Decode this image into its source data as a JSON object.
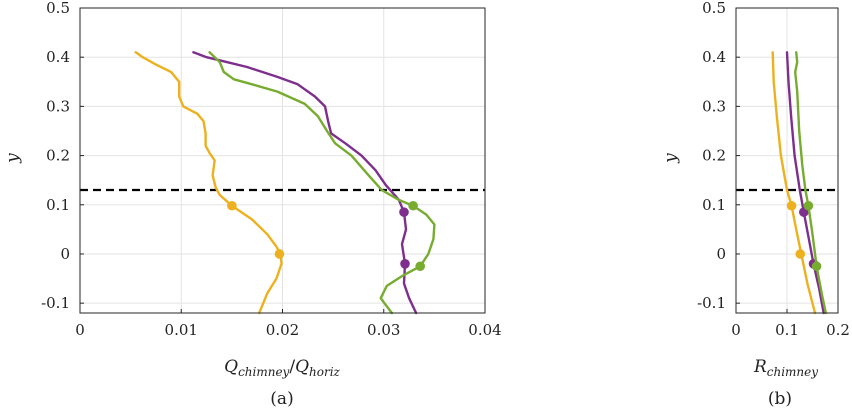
{
  "chart_data": [
    {
      "type": "line",
      "caption": "(a)",
      "xlabel_main": "Q",
      "xlabel_sub1": "chimney",
      "xlabel_sep": "/",
      "xlabel_main2": "Q",
      "xlabel_sub2": "horiz",
      "ylabel": "y",
      "xlim": [
        0,
        0.04
      ],
      "ylim": [
        -0.12,
        0.5
      ],
      "xticks": [
        0,
        0.01,
        0.02,
        0.03,
        0.04
      ],
      "xtick_labels": [
        "0",
        "0.01",
        "0.02",
        "0.03",
        "0.04"
      ],
      "yticks": [
        -0.1,
        0,
        0.1,
        0.2,
        0.3,
        0.4,
        0.5
      ],
      "ytick_labels": [
        "-0.1",
        "0",
        "0.1",
        "0.2",
        "0.3",
        "0.4",
        "0.5"
      ],
      "grid": true,
      "threshold_y": 0.13,
      "series": [
        {
          "color": "#EDB120",
          "points": [
            [
              0.0055,
              0.41
            ],
            [
              0.0062,
              0.4
            ],
            [
              0.0075,
              0.385
            ],
            [
              0.009,
              0.37
            ],
            [
              0.0098,
              0.35
            ],
            [
              0.0098,
              0.32
            ],
            [
              0.0102,
              0.3
            ],
            [
              0.0116,
              0.285
            ],
            [
              0.0122,
              0.27
            ],
            [
              0.0124,
              0.245
            ],
            [
              0.0124,
              0.22
            ],
            [
              0.0128,
              0.205
            ],
            [
              0.0133,
              0.19
            ],
            [
              0.0131,
              0.16
            ],
            [
              0.0134,
              0.135
            ],
            [
              0.0138,
              0.12
            ],
            [
              0.015,
              0.098
            ],
            [
              0.017,
              0.07
            ],
            [
              0.0185,
              0.04
            ],
            [
              0.0194,
              0.015
            ],
            [
              0.0198,
              0.0
            ],
            [
              0.0199,
              -0.02
            ],
            [
              0.0194,
              -0.05
            ],
            [
              0.0185,
              -0.08
            ],
            [
              0.0177,
              -0.12
            ]
          ],
          "markers": [
            [
              0.015,
              0.098
            ],
            [
              0.0197,
              0.0
            ]
          ]
        },
        {
          "color": "#7E2F8E",
          "points": [
            [
              0.0112,
              0.41
            ],
            [
              0.0125,
              0.4
            ],
            [
              0.0145,
              0.39
            ],
            [
              0.0165,
              0.38
            ],
            [
              0.0195,
              0.36
            ],
            [
              0.0215,
              0.345
            ],
            [
              0.0232,
              0.32
            ],
            [
              0.0242,
              0.3
            ],
            [
              0.0245,
              0.27
            ],
            [
              0.0248,
              0.245
            ],
            [
              0.0262,
              0.225
            ],
            [
              0.0278,
              0.2
            ],
            [
              0.0292,
              0.17
            ],
            [
              0.0302,
              0.14
            ],
            [
              0.0315,
              0.11
            ],
            [
              0.032,
              0.085
            ],
            [
              0.0322,
              0.05
            ],
            [
              0.0318,
              0.02
            ],
            [
              0.0321,
              -0.02
            ],
            [
              0.032,
              -0.06
            ],
            [
              0.0325,
              -0.09
            ],
            [
              0.0332,
              -0.12
            ]
          ],
          "markers": [
            [
              0.032,
              0.085
            ],
            [
              0.0321,
              -0.02
            ]
          ]
        },
        {
          "color": "#77AC30",
          "points": [
            [
              0.0128,
              0.41
            ],
            [
              0.0138,
              0.39
            ],
            [
              0.0142,
              0.37
            ],
            [
              0.0152,
              0.355
            ],
            [
              0.017,
              0.345
            ],
            [
              0.0195,
              0.33
            ],
            [
              0.0222,
              0.305
            ],
            [
              0.0235,
              0.28
            ],
            [
              0.0244,
              0.25
            ],
            [
              0.0252,
              0.225
            ],
            [
              0.0268,
              0.2
            ],
            [
              0.0285,
              0.16
            ],
            [
              0.0298,
              0.13
            ],
            [
              0.0315,
              0.11
            ],
            [
              0.0329,
              0.098
            ],
            [
              0.0342,
              0.08
            ],
            [
              0.035,
              0.06
            ],
            [
              0.0349,
              0.03
            ],
            [
              0.0344,
              0.0
            ],
            [
              0.0336,
              -0.025
            ],
            [
              0.0318,
              -0.045
            ],
            [
              0.0303,
              -0.065
            ],
            [
              0.0297,
              -0.09
            ],
            [
              0.0308,
              -0.12
            ]
          ],
          "markers": [
            [
              0.0329,
              0.098
            ],
            [
              0.0336,
              -0.025
            ]
          ]
        }
      ]
    },
    {
      "type": "line",
      "caption": "(b)",
      "xlabel_main": "R",
      "xlabel_sub1": "chimney",
      "ylabel": "y",
      "xlim": [
        0,
        0.2
      ],
      "ylim": [
        -0.12,
        0.5
      ],
      "xticks": [
        0,
        0.1,
        0.2
      ],
      "xtick_labels": [
        "0",
        "0.1",
        "0.2"
      ],
      "yticks": [
        -0.1,
        0,
        0.1,
        0.2,
        0.3,
        0.4,
        0.5
      ],
      "ytick_labels": [
        "-0.1",
        "0",
        "0.1",
        "0.2",
        "0.3",
        "0.4",
        "0.5"
      ],
      "grid": true,
      "threshold_y": 0.13,
      "series": [
        {
          "color": "#EDB120",
          "points": [
            [
              0.072,
              0.41
            ],
            [
              0.074,
              0.35
            ],
            [
              0.08,
              0.28
            ],
            [
              0.088,
              0.2
            ],
            [
              0.1,
              0.13
            ],
            [
              0.109,
              0.098
            ],
            [
              0.118,
              0.05
            ],
            [
              0.128,
              0.0
            ],
            [
              0.14,
              -0.06
            ],
            [
              0.155,
              -0.12
            ]
          ],
          "markers": [
            [
              0.109,
              0.098
            ],
            [
              0.126,
              0.0
            ]
          ]
        },
        {
          "color": "#7E2F8E",
          "points": [
            [
              0.1,
              0.41
            ],
            [
              0.103,
              0.35
            ],
            [
              0.108,
              0.28
            ],
            [
              0.115,
              0.2
            ],
            [
              0.125,
              0.13
            ],
            [
              0.133,
              0.085
            ],
            [
              0.143,
              0.03
            ],
            [
              0.152,
              -0.02
            ],
            [
              0.163,
              -0.07
            ],
            [
              0.172,
              -0.12
            ]
          ],
          "markers": [
            [
              0.133,
              0.085
            ],
            [
              0.152,
              -0.02
            ]
          ]
        },
        {
          "color": "#77AC30",
          "points": [
            [
              0.118,
              0.41
            ],
            [
              0.12,
              0.39
            ],
            [
              0.116,
              0.37
            ],
            [
              0.12,
              0.33
            ],
            [
              0.124,
              0.25
            ],
            [
              0.13,
              0.18
            ],
            [
              0.136,
              0.13
            ],
            [
              0.142,
              0.098
            ],
            [
              0.15,
              0.04
            ],
            [
              0.158,
              -0.025
            ],
            [
              0.168,
              -0.08
            ],
            [
              0.176,
              -0.12
            ]
          ],
          "markers": [
            [
              0.142,
              0.098
            ],
            [
              0.158,
              -0.025
            ]
          ]
        }
      ]
    }
  ]
}
